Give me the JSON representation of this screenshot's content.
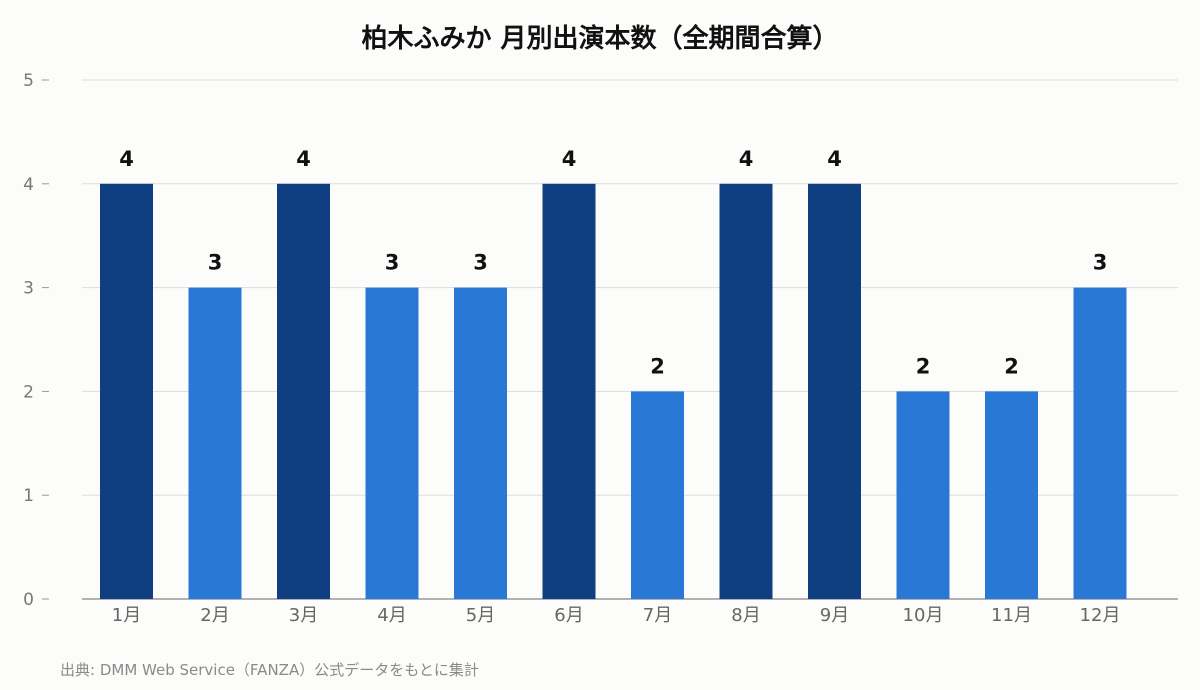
{
  "chart_data": {
    "type": "bar",
    "title": "柏木ふみか 月別出演本数（全期間合算）",
    "categories": [
      "1月",
      "2月",
      "3月",
      "4月",
      "5月",
      "6月",
      "7月",
      "8月",
      "9月",
      "10月",
      "11月",
      "12月"
    ],
    "values": [
      4,
      3,
      4,
      3,
      3,
      4,
      2,
      4,
      4,
      2,
      2,
      3
    ],
    "ylim": [
      0,
      5
    ],
    "yticks": [
      0,
      1,
      2,
      3,
      4,
      5
    ],
    "grid": true,
    "colors": {
      "highlight": "#0f3f80",
      "normal": "#2a78d6",
      "grid": "#dddddd",
      "axis": "#999999",
      "tick_label": "#777777",
      "value_label": "#111111"
    },
    "highlight_rule": "max value"
  },
  "source_note": "出典: DMM Web Service（FANZA）公式データをもとに集計"
}
